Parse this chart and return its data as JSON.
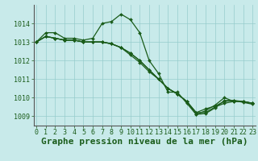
{
  "background_color": "#c8eaea",
  "grid_color": "#96cccc",
  "line_color": "#1a5c1a",
  "marker_color": "#1a5c1a",
  "title": "Graphe pression niveau de la mer (hPa)",
  "ylim": [
    1008.5,
    1015.0
  ],
  "yticks": [
    1009,
    1010,
    1011,
    1012,
    1013,
    1014
  ],
  "xlim": [
    -0.3,
    23.3
  ],
  "xticks": [
    0,
    1,
    2,
    3,
    4,
    5,
    6,
    7,
    8,
    9,
    10,
    11,
    12,
    13,
    14,
    15,
    16,
    17,
    18,
    19,
    20,
    21,
    22,
    23
  ],
  "series": [
    [
      1013.0,
      1013.5,
      1013.5,
      1013.2,
      1013.2,
      1013.1,
      1013.2,
      1014.0,
      1014.1,
      1014.5,
      1014.2,
      1013.5,
      1012.0,
      1011.3,
      1010.3,
      1010.3,
      1009.7,
      1009.1,
      1009.3,
      1009.6,
      1010.0,
      1009.8,
      1009.8,
      1009.7
    ],
    [
      1013.0,
      1013.3,
      1013.2,
      1013.1,
      1013.1,
      1013.0,
      1013.0,
      1013.0,
      1012.9,
      1012.7,
      1012.4,
      1012.0,
      1011.5,
      1011.0,
      1010.5,
      1010.2,
      1009.8,
      1009.2,
      1009.2,
      1009.5,
      1009.7,
      1009.8,
      1009.8,
      1009.7
    ],
    [
      1013.0,
      1013.3,
      1013.2,
      1013.1,
      1013.1,
      1013.0,
      1013.0,
      1013.0,
      1012.9,
      1012.7,
      1012.4,
      1012.0,
      1011.5,
      1011.0,
      1010.5,
      1010.2,
      1009.8,
      1009.2,
      1009.4,
      1009.55,
      1009.8,
      1009.85,
      1009.8,
      1009.7
    ],
    [
      1013.0,
      1013.3,
      1013.2,
      1013.1,
      1013.1,
      1013.0,
      1013.0,
      1013.0,
      1012.9,
      1012.7,
      1012.3,
      1011.9,
      1011.4,
      1011.0,
      1010.5,
      1010.2,
      1009.8,
      1009.1,
      1009.15,
      1009.45,
      1009.85,
      1009.85,
      1009.75,
      1009.65
    ]
  ],
  "title_fontsize": 8,
  "tick_fontsize": 6,
  "marker_size": 2.0,
  "line_width": 0.9
}
